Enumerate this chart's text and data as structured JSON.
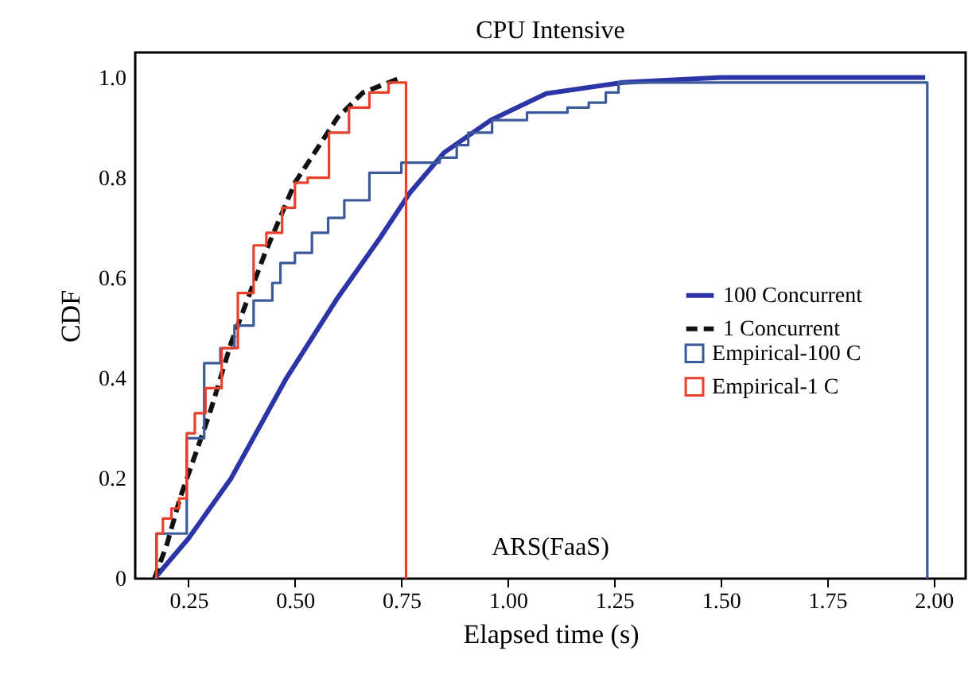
{
  "chart_data": {
    "type": "line",
    "title": "CPU Intensive",
    "xlabel": "Elapsed time (s)",
    "ylabel": "CDF",
    "annotations": [
      "ARS(FaaS)"
    ],
    "xlim": [
      0.125,
      2.075
    ],
    "ylim": [
      0,
      1.05
    ],
    "xticks": [
      0.25,
      {
        "value": 0.5,
        "label": "0.50"
      },
      0.75,
      {
        "value": 1,
        "label": "1.00"
      },
      1.25,
      {
        "value": 1.5,
        "label": "1.50"
      },
      1.75,
      {
        "value": 2,
        "label": "2.00"
      }
    ],
    "yticks": [
      0,
      0.2,
      0.4,
      0.6,
      0.8,
      {
        "value": 1,
        "label": "1.0"
      }
    ],
    "grid": false,
    "legend": "right",
    "marker": "none",
    "series": [
      {
        "name": "100 Concurrent",
        "line_style": "solid",
        "color": "#2b35a8",
        "x": [
          0.17,
          0.25,
          0.35,
          0.48,
          0.6,
          0.7,
          0.77,
          0.85,
          0.96,
          1.09,
          1.27,
          1.5,
          1.98
        ],
        "values": [
          0,
          0.08,
          0.2,
          0.4,
          0.56,
          0.68,
          0.77,
          0.85,
          0.915,
          0.968,
          0.99,
          1,
          1
        ]
      },
      {
        "name": "1 Concurrent",
        "line_style": "dashed",
        "color": "#111111",
        "x": [
          0.17,
          0.2,
          0.23,
          0.3,
          0.35,
          0.43,
          0.5,
          0.6,
          0.66,
          0.75
        ],
        "values": [
          0,
          0.07,
          0.16,
          0.33,
          0.47,
          0.65,
          0.79,
          0.92,
          0.97,
          1
        ]
      },
      {
        "name": "Empirical-100 C",
        "type": "step",
        "line_style": "solid",
        "color": "#3a5a9a",
        "x": [
          0.17,
          0.175,
          0.246,
          0.287,
          0.325,
          0.358,
          0.403,
          0.447,
          0.466,
          0.5,
          0.54,
          0.578,
          0.616,
          0.675,
          0.75,
          0.84,
          0.88,
          0.907,
          0.963,
          1.045,
          1.14,
          1.19,
          1.23,
          1.26,
          1.985,
          1.985
        ],
        "values": [
          0,
          0.09,
          0.28,
          0.43,
          0.46,
          0.505,
          0.555,
          0.59,
          0.63,
          0.65,
          0.69,
          0.72,
          0.755,
          0.81,
          0.83,
          0.84,
          0.865,
          0.89,
          0.915,
          0.93,
          0.94,
          0.95,
          0.97,
          0.99,
          0.99,
          0
        ]
      },
      {
        "name": "Empirical-1 C",
        "type": "step",
        "line_style": "solid",
        "color": "#e8402a",
        "x": [
          0.17,
          0.175,
          0.19,
          0.21,
          0.228,
          0.246,
          0.265,
          0.29,
          0.328,
          0.366,
          0.403,
          0.433,
          0.47,
          0.5,
          0.53,
          0.58,
          0.627,
          0.675,
          0.72,
          0.761,
          0.761
        ],
        "values": [
          0,
          0.09,
          0.12,
          0.14,
          0.16,
          0.29,
          0.33,
          0.38,
          0.46,
          0.57,
          0.665,
          0.69,
          0.74,
          0.79,
          0.8,
          0.89,
          0.94,
          0.97,
          0.99,
          0.99,
          0
        ]
      }
    ]
  }
}
